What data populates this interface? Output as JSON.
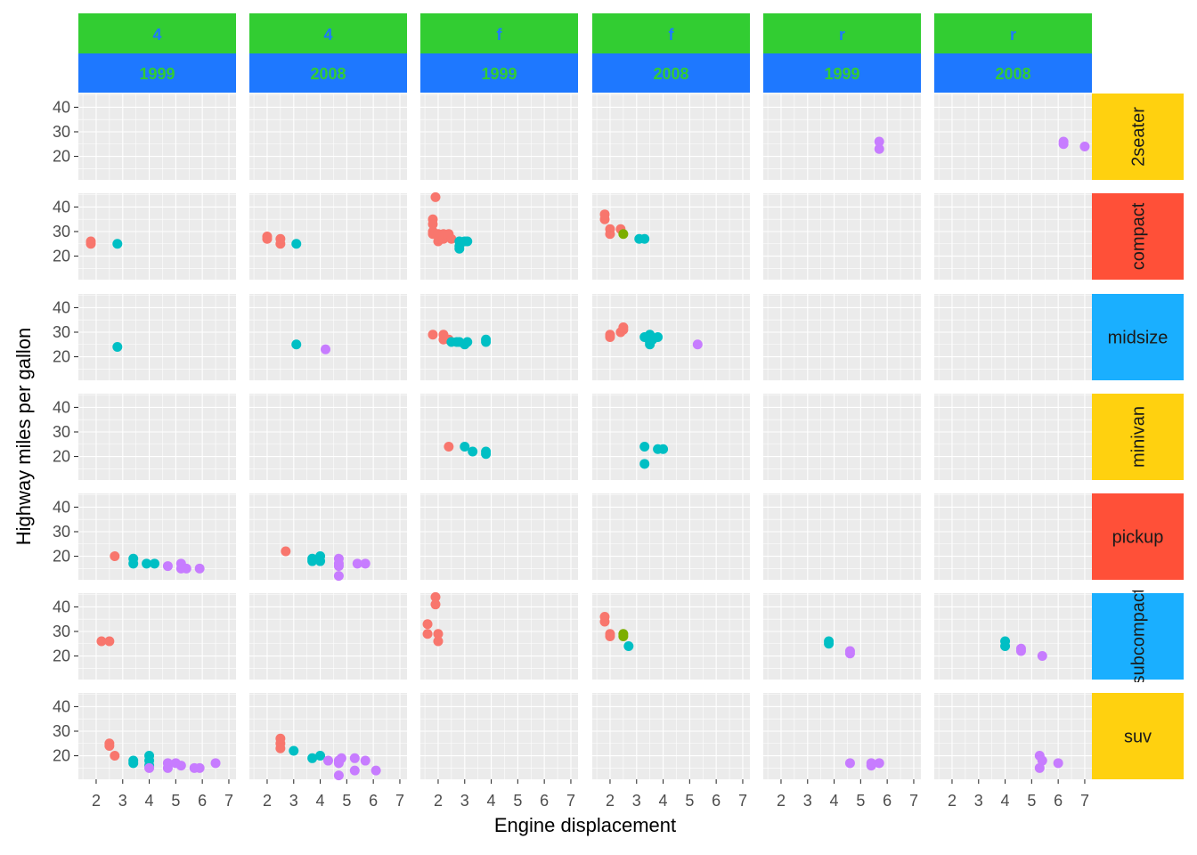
{
  "chart_data": {
    "type": "scatter",
    "facet": "grid",
    "xlabel": "Engine displacement",
    "ylabel": "Highway miles per gallon",
    "xlim": [
      1.33,
      7.27
    ],
    "ylim": [
      10.4,
      45.6
    ],
    "xticks": [
      2,
      3,
      4,
      5,
      6,
      7
    ],
    "yticks": [
      20,
      30,
      40
    ],
    "grid": true,
    "legend": "none",
    "point_colors": [
      "#F8766D",
      "#7CAE00",
      "#00BFC4",
      "#C77CFF"
    ],
    "strip_colors": {
      "top_outer_bg": "#32CD32",
      "top_outer_text": "#1E78FF",
      "top_inner_bg": "#1E78FF",
      "top_inner_text": "#32CD32",
      "right_bg": [
        "#FFD10F",
        "#FF5038",
        "#1AAFFF",
        "#FFD10F",
        "#FF5038",
        "#1AAFFF",
        "#FFD10F"
      ]
    },
    "columns": [
      {
        "drv": "4",
        "year": "1999"
      },
      {
        "drv": "4",
        "year": "2008"
      },
      {
        "drv": "f",
        "year": "1999"
      },
      {
        "drv": "f",
        "year": "2008"
      },
      {
        "drv": "r",
        "year": "1999"
      },
      {
        "drv": "r",
        "year": "2008"
      }
    ],
    "rows": [
      "2seater",
      "compact",
      "midsize",
      "minivan",
      "pickup",
      "subcompact",
      "suv"
    ],
    "panels": [
      {
        "row": 0,
        "col": 4,
        "points": [
          [
            5.7,
            26,
            3
          ],
          [
            5.7,
            23,
            3
          ]
        ]
      },
      {
        "row": 0,
        "col": 5,
        "points": [
          [
            6.2,
            26,
            3
          ],
          [
            6.2,
            25,
            3
          ],
          [
            7.0,
            24,
            3
          ]
        ]
      },
      {
        "row": 1,
        "col": 0,
        "points": [
          [
            1.8,
            26,
            0
          ],
          [
            1.8,
            25,
            0
          ],
          [
            2.8,
            25,
            2
          ]
        ]
      },
      {
        "row": 1,
        "col": 1,
        "points": [
          [
            2.0,
            28,
            0
          ],
          [
            2.0,
            27,
            0
          ],
          [
            2.5,
            27,
            0
          ],
          [
            2.5,
            25,
            0
          ],
          [
            3.1,
            25,
            2
          ]
        ]
      },
      {
        "row": 1,
        "col": 2,
        "points": [
          [
            1.9,
            44,
            0
          ],
          [
            1.8,
            35,
            0
          ],
          [
            1.8,
            33,
            0
          ],
          [
            1.8,
            29,
            0
          ],
          [
            1.8,
            30,
            0
          ],
          [
            2.0,
            26,
            0
          ],
          [
            2.0,
            29,
            0
          ],
          [
            2.2,
            27,
            0
          ],
          [
            2.2,
            29,
            0
          ],
          [
            2.4,
            28,
            0
          ],
          [
            2.4,
            29,
            0
          ],
          [
            2.5,
            27,
            0
          ],
          [
            2.8,
            26,
            2
          ],
          [
            2.8,
            23,
            2
          ],
          [
            2.8,
            24,
            2
          ],
          [
            3.0,
            26,
            2
          ],
          [
            3.1,
            26,
            2
          ]
        ]
      },
      {
        "row": 1,
        "col": 3,
        "points": [
          [
            1.8,
            37,
            0
          ],
          [
            1.8,
            35,
            0
          ],
          [
            2.0,
            31,
            0
          ],
          [
            2.0,
            29,
            0
          ],
          [
            2.4,
            31,
            0
          ],
          [
            2.5,
            29,
            1
          ],
          [
            3.1,
            27,
            2
          ],
          [
            3.3,
            27,
            2
          ]
        ]
      },
      {
        "row": 2,
        "col": 0,
        "points": [
          [
            2.8,
            24,
            2
          ]
        ]
      },
      {
        "row": 2,
        "col": 1,
        "points": [
          [
            3.1,
            25,
            2
          ],
          [
            4.2,
            23,
            3
          ]
        ]
      },
      {
        "row": 2,
        "col": 2,
        "points": [
          [
            1.8,
            29,
            0
          ],
          [
            2.2,
            29,
            0
          ],
          [
            2.2,
            27,
            0
          ],
          [
            2.4,
            27,
            0
          ],
          [
            2.5,
            26,
            2
          ],
          [
            2.7,
            26,
            2
          ],
          [
            2.8,
            26,
            2
          ],
          [
            3.0,
            25,
            2
          ],
          [
            3.1,
            26,
            2
          ],
          [
            3.8,
            27,
            2
          ],
          [
            3.8,
            26,
            2
          ]
        ]
      },
      {
        "row": 2,
        "col": 3,
        "points": [
          [
            2.0,
            29,
            0
          ],
          [
            2.0,
            28,
            0
          ],
          [
            2.4,
            30,
            0
          ],
          [
            2.5,
            31,
            0
          ],
          [
            2.5,
            32,
            0
          ],
          [
            3.3,
            28,
            2
          ],
          [
            3.5,
            29,
            2
          ],
          [
            3.5,
            26,
            2
          ],
          [
            3.5,
            25,
            2
          ],
          [
            3.6,
            27,
            2
          ],
          [
            3.8,
            28,
            2
          ],
          [
            5.3,
            25,
            3
          ]
        ]
      },
      {
        "row": 3,
        "col": 2,
        "points": [
          [
            2.4,
            24,
            0
          ],
          [
            3.0,
            24,
            2
          ],
          [
            3.3,
            22,
            2
          ],
          [
            3.8,
            22,
            2
          ],
          [
            3.8,
            21,
            2
          ]
        ]
      },
      {
        "row": 3,
        "col": 3,
        "points": [
          [
            3.3,
            24,
            2
          ],
          [
            3.3,
            17,
            2
          ],
          [
            3.8,
            23,
            2
          ],
          [
            4.0,
            23,
            2
          ]
        ]
      },
      {
        "row": 4,
        "col": 0,
        "points": [
          [
            2.7,
            20,
            0
          ],
          [
            3.4,
            19,
            2
          ],
          [
            3.4,
            17,
            2
          ],
          [
            3.9,
            17,
            2
          ],
          [
            4.2,
            17,
            2
          ],
          [
            4.7,
            16,
            3
          ],
          [
            5.2,
            17,
            3
          ],
          [
            5.2,
            15,
            3
          ],
          [
            5.4,
            15,
            3
          ],
          [
            5.9,
            15,
            3
          ]
        ]
      },
      {
        "row": 4,
        "col": 1,
        "points": [
          [
            2.7,
            22,
            0
          ],
          [
            3.7,
            19,
            2
          ],
          [
            3.7,
            18,
            2
          ],
          [
            4.0,
            20,
            2
          ],
          [
            4.0,
            18,
            2
          ],
          [
            4.7,
            19,
            3
          ],
          [
            4.7,
            17,
            3
          ],
          [
            4.7,
            16,
            3
          ],
          [
            4.7,
            12,
            3
          ],
          [
            5.4,
            17,
            3
          ],
          [
            5.7,
            17,
            3
          ]
        ]
      },
      {
        "row": 5,
        "col": 0,
        "points": [
          [
            2.2,
            26,
            0
          ],
          [
            2.5,
            26,
            0
          ]
        ]
      },
      {
        "row": 5,
        "col": 2,
        "points": [
          [
            1.6,
            33,
            0
          ],
          [
            1.6,
            29,
            0
          ],
          [
            1.9,
            44,
            0
          ],
          [
            1.9,
            41,
            0
          ],
          [
            2.0,
            29,
            0
          ],
          [
            2.0,
            26,
            0
          ]
        ]
      },
      {
        "row": 5,
        "col": 3,
        "points": [
          [
            1.8,
            36,
            0
          ],
          [
            1.8,
            34,
            0
          ],
          [
            2.0,
            29,
            0
          ],
          [
            2.0,
            28,
            0
          ],
          [
            2.5,
            29,
            1
          ],
          [
            2.5,
            28,
            1
          ],
          [
            2.7,
            24,
            2
          ]
        ]
      },
      {
        "row": 5,
        "col": 4,
        "points": [
          [
            3.8,
            26,
            2
          ],
          [
            3.8,
            25,
            2
          ],
          [
            4.6,
            22,
            3
          ],
          [
            4.6,
            21,
            3
          ]
        ]
      },
      {
        "row": 5,
        "col": 5,
        "points": [
          [
            4.0,
            26,
            2
          ],
          [
            4.0,
            24,
            2
          ],
          [
            4.6,
            23,
            3
          ],
          [
            4.6,
            22,
            3
          ],
          [
            5.4,
            20,
            3
          ]
        ]
      },
      {
        "row": 6,
        "col": 0,
        "points": [
          [
            2.5,
            25,
            0
          ],
          [
            2.5,
            24,
            0
          ],
          [
            2.7,
            20,
            0
          ],
          [
            3.4,
            18,
            2
          ],
          [
            3.4,
            17,
            2
          ],
          [
            4.0,
            20,
            2
          ],
          [
            4.0,
            18,
            2
          ],
          [
            4.0,
            16,
            2
          ],
          [
            4.0,
            15,
            3
          ],
          [
            4.7,
            17,
            3
          ],
          [
            4.7,
            15,
            3
          ],
          [
            5.0,
            17,
            3
          ],
          [
            5.2,
            16,
            3
          ],
          [
            5.7,
            15,
            3
          ],
          [
            5.9,
            15,
            3
          ],
          [
            6.5,
            17,
            3
          ]
        ]
      },
      {
        "row": 6,
        "col": 1,
        "points": [
          [
            2.5,
            27,
            0
          ],
          [
            2.5,
            25,
            0
          ],
          [
            2.5,
            23,
            0
          ],
          [
            3.0,
            22,
            2
          ],
          [
            3.7,
            19,
            2
          ],
          [
            4.0,
            20,
            2
          ],
          [
            4.3,
            18,
            3
          ],
          [
            4.7,
            18,
            3
          ],
          [
            4.7,
            17,
            3
          ],
          [
            4.7,
            12,
            3
          ],
          [
            4.8,
            19,
            3
          ],
          [
            5.3,
            19,
            3
          ],
          [
            5.3,
            14,
            3
          ],
          [
            5.7,
            18,
            3
          ],
          [
            6.1,
            14,
            3
          ]
        ]
      },
      {
        "row": 6,
        "col": 4,
        "points": [
          [
            4.6,
            17,
            3
          ],
          [
            5.4,
            17,
            3
          ],
          [
            5.4,
            16,
            3
          ],
          [
            5.7,
            17,
            3
          ]
        ]
      },
      {
        "row": 6,
        "col": 5,
        "points": [
          [
            5.3,
            20,
            3
          ],
          [
            5.3,
            15,
            3
          ],
          [
            5.4,
            18,
            3
          ],
          [
            6.0,
            17,
            3
          ]
        ]
      }
    ]
  }
}
